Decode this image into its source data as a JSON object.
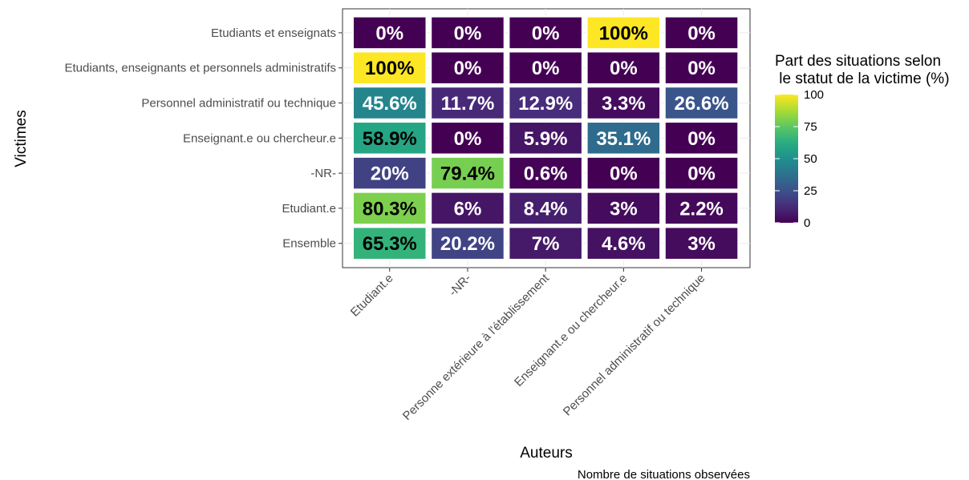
{
  "chart_data": {
    "type": "heatmap",
    "xlabel": "Auteurs",
    "ylabel": "Victimes",
    "caption": "Nombre de situations observées",
    "legend": {
      "title_lines": [
        "Part des situations selon",
        " le statut de la victime (%)"
      ],
      "ticks": [
        0,
        25,
        50,
        75,
        100
      ],
      "tick_labels": [
        "0",
        "25",
        "50",
        "75",
        "100"
      ],
      "colormap": "viridis",
      "placement": "right",
      "range": [
        0,
        100
      ]
    },
    "x_categories": [
      "Etudiant.e",
      "-NR-",
      "Personne extérieure à l'établissement",
      "Enseignant.e ou chercheur.e",
      "Personnel administratif ou technique"
    ],
    "y_categories": [
      "Etudiants et enseignats",
      "Etudiants, enseignants et personnels administratifs",
      "Personnel administratif ou technique",
      "Enseignant.e ou chercheur.e",
      "-NR-",
      "Etudiant.e",
      "Ensemble"
    ],
    "values": [
      [
        0,
        0,
        0,
        100,
        0
      ],
      [
        100,
        0,
        0,
        0,
        0
      ],
      [
        45.6,
        11.7,
        12.9,
        3.3,
        26.6
      ],
      [
        58.9,
        0,
        5.9,
        35.1,
        0
      ],
      [
        20,
        79.4,
        0.6,
        0,
        0
      ],
      [
        80.3,
        6,
        8.4,
        3,
        2.2
      ],
      [
        65.3,
        20.2,
        7,
        4.6,
        3
      ]
    ],
    "labels": [
      [
        "0%",
        "0%",
        "0%",
        "100%",
        "0%"
      ],
      [
        "100%",
        "0%",
        "0%",
        "0%",
        "0%"
      ],
      [
        "45.6%",
        "11.7%",
        "12.9%",
        "3.3%",
        "26.6%"
      ],
      [
        "58.9%",
        "0%",
        "5.9%",
        "35.1%",
        "0%"
      ],
      [
        "20%",
        "79.4%",
        "0.6%",
        "0%",
        "0%"
      ],
      [
        "80.3%",
        "6%",
        "8.4%",
        "3%",
        "2.2%"
      ],
      [
        "65.3%",
        "20.2%",
        "7%",
        "4.6%",
        "3%"
      ]
    ],
    "grid": true
  }
}
